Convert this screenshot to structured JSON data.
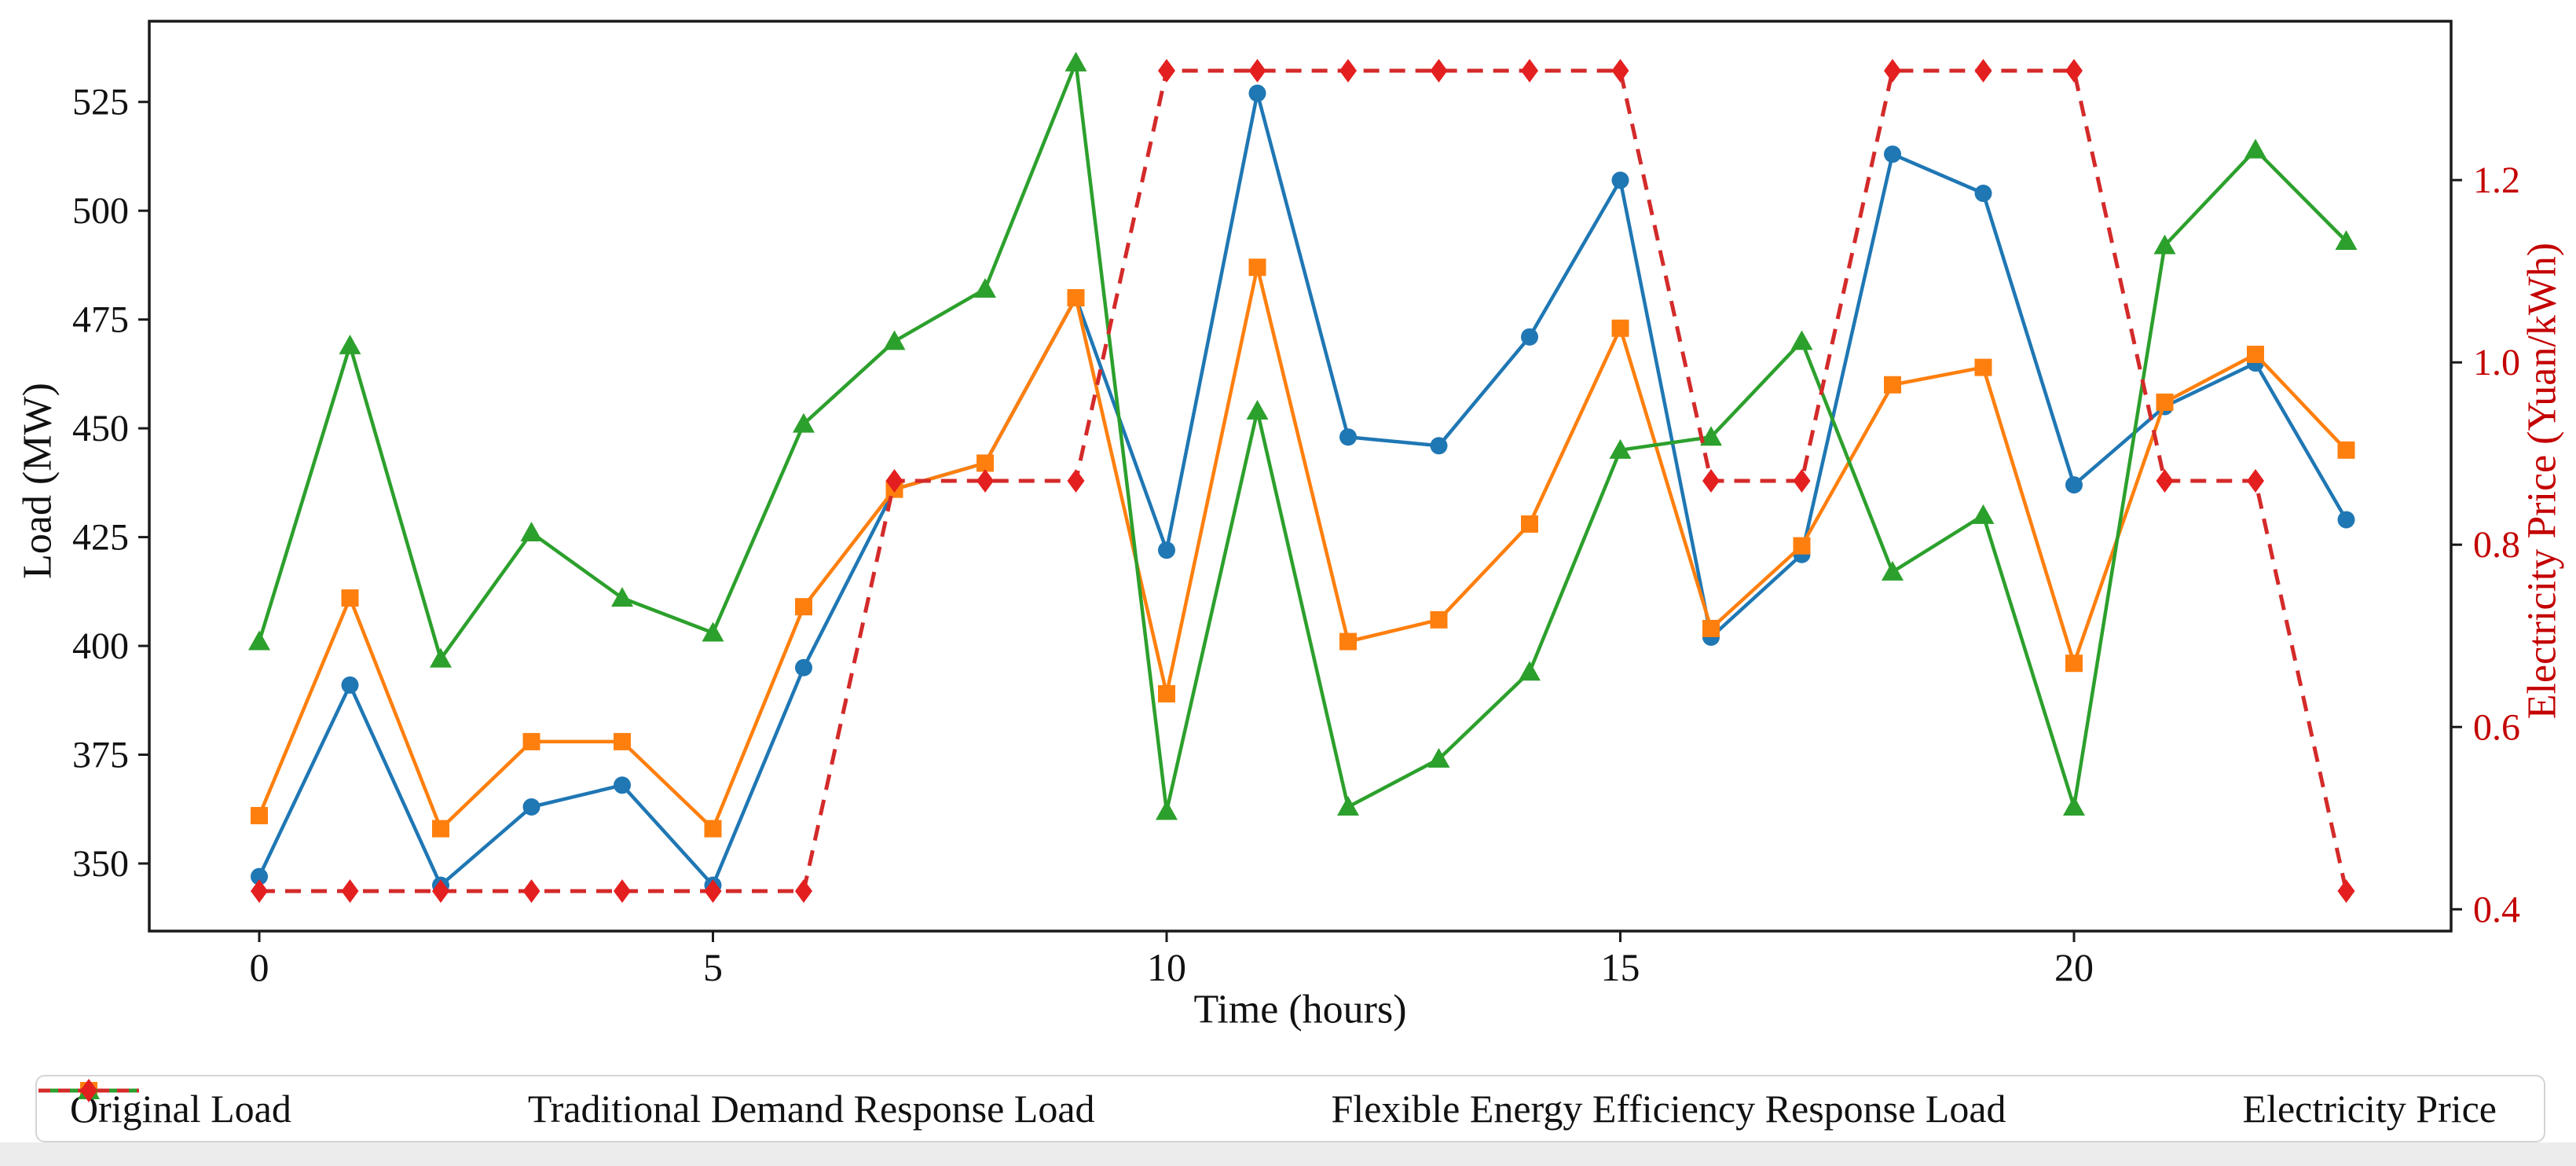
{
  "axes": {
    "x": {
      "title": "Time (hours)",
      "ticks": [
        "0",
        "5",
        "10",
        "15",
        "20"
      ],
      "tick_values": [
        0,
        5,
        10,
        15,
        20
      ],
      "range": [
        -1.2121,
        24.1558
      ]
    },
    "y_left": {
      "title": "Load (MW)",
      "ticks": [
        "350",
        "375",
        "400",
        "425",
        "450",
        "475",
        "500",
        "525"
      ],
      "tick_values": [
        350,
        375,
        400,
        425,
        450,
        475,
        500,
        525
      ],
      "range": [
        334.47,
        543.55
      ],
      "color": "#111111"
    },
    "y_right": {
      "title": "Electricity Price (Yuan/kWh)",
      "ticks": [
        "0.4",
        "0.6",
        "0.8",
        "1.0",
        "1.2"
      ],
      "tick_values": [
        0.4,
        0.6,
        0.8,
        1.0,
        1.2
      ],
      "range": [
        0.3761,
        1.3743
      ],
      "color": "#c40000"
    }
  },
  "legend": {
    "items": [
      {
        "label": "Original Load",
        "color": "#1f77b4",
        "marker": "circle",
        "dashed": false
      },
      {
        "label": "Traditional Demand Response Load",
        "color": "#ff7f0e",
        "marker": "square",
        "dashed": false
      },
      {
        "label": "Flexible Energy Efficiency Response Load",
        "color": "#2ca02c",
        "marker": "triangle",
        "dashed": false
      },
      {
        "label": "Electricity Price",
        "color": "#d42a2a",
        "marker": "diamond",
        "dashed": true,
        "marker_color": "#e41f1f"
      }
    ]
  },
  "chart_data": {
    "type": "line",
    "title": "",
    "xlabel": "Time (hours)",
    "ylabel": "Load (MW)",
    "ylabel2": "Electricity Price (Yuan/kWh)",
    "x": [
      0,
      1,
      2,
      3,
      4,
      5,
      6,
      7,
      8,
      9,
      10,
      11,
      12,
      13,
      14,
      15,
      16,
      17,
      18,
      19,
      20,
      21,
      22,
      23
    ],
    "xlim": [
      -1.2121,
      24.1558
    ],
    "ylim_left": [
      334.47,
      543.55
    ],
    "ylim_right": [
      0.3761,
      1.3743
    ],
    "grid": false,
    "legend_position": "bottom",
    "series": [
      {
        "name": "Original Load",
        "axis": "left",
        "color": "#1f77b4",
        "marker": "circle",
        "line": "solid",
        "values": [
          347,
          391,
          345,
          363,
          368,
          345,
          395,
          436,
          442,
          480,
          422,
          527,
          448,
          446,
          471,
          507,
          402,
          421,
          513,
          504,
          437,
          455,
          465,
          429
        ]
      },
      {
        "name": "Traditional Demand Response Load",
        "axis": "left",
        "color": "#ff7f0e",
        "marker": "square",
        "line": "solid",
        "values": [
          361,
          411,
          358,
          378,
          378,
          358,
          409,
          436,
          442,
          480,
          389,
          487,
          401,
          406,
          428,
          473,
          404,
          423,
          460,
          464,
          396,
          456,
          467,
          445
        ]
      },
      {
        "name": "Flexible Energy Efficiency Response Load",
        "axis": "left",
        "color": "#2ca02c",
        "marker": "triangle",
        "line": "solid",
        "values": [
          401,
          469,
          397,
          426,
          411,
          403,
          451,
          470,
          482,
          534,
          362,
          454,
          363,
          374,
          394,
          445,
          448,
          470,
          417,
          430,
          363,
          492,
          514,
          493
        ]
      },
      {
        "name": "Electricity Price",
        "axis": "right",
        "color": "#d42a2a",
        "marker": "diamond",
        "marker_color": "#e41f1f",
        "line": "dashed",
        "values": [
          0.42,
          0.42,
          0.42,
          0.42,
          0.42,
          0.42,
          0.42,
          0.87,
          0.87,
          0.87,
          1.32,
          1.32,
          1.32,
          1.32,
          1.32,
          1.32,
          0.87,
          0.87,
          1.32,
          1.32,
          1.32,
          0.87,
          0.87,
          0.42
        ]
      }
    ]
  }
}
